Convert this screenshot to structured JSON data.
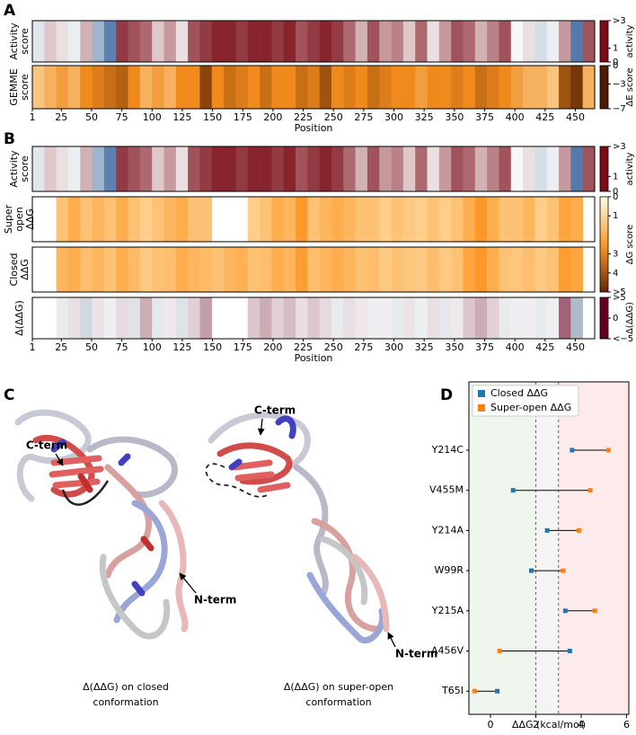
{
  "panel_c": {
    "label": "C",
    "captions": [
      [
        "Δ(ΔΔG) on closed",
        "conformation"
      ],
      [
        "Δ(ΔΔG) on super-open",
        "conformation"
      ]
    ],
    "terms": [
      "C-term",
      "N-term",
      "C-term",
      "N-term"
    ]
  },
  "chart_data": [
    {
      "type": "heatmap",
      "label": "A",
      "xlim": [
        1,
        466
      ],
      "xticks": [
        1,
        25,
        50,
        75,
        100,
        125,
        150,
        175,
        200,
        225,
        250,
        275,
        300,
        325,
        350,
        375,
        400,
        425,
        450
      ],
      "xlabel": "Position",
      "rows": [
        {
          "label": [
            "Activity",
            "score"
          ],
          "values": [
            1.2,
            0.8,
            0.9,
            1.1,
            0.7,
            1.8,
            2.4,
            0.2,
            0.3,
            0.4,
            0.8,
            0.6,
            0.9,
            0.3,
            0.2,
            0.1,
            0.1,
            0.2,
            0.1,
            0.1,
            0.2,
            0.1,
            0.3,
            0.2,
            0.1,
            0.2,
            0.4,
            0.7,
            0.3,
            0.6,
            0.5,
            0.8,
            0.4,
            0.9,
            0.6,
            0.3,
            0.4,
            0.7,
            0.5,
            0.3,
            1.0,
            0.9,
            1.3,
            1.1,
            0.6,
            2.5,
            0.3
          ]
        },
        {
          "label": [
            "GEMME",
            "score"
          ],
          "values": [
            -1.5,
            -2,
            -2.5,
            -2,
            -3,
            -3.5,
            -4,
            -4.5,
            -3,
            -2,
            -2.5,
            -2,
            -3,
            -3,
            -5.5,
            -3,
            -4,
            -3.5,
            -3,
            -4,
            -3,
            -3,
            -4,
            -3.5,
            -5,
            -3,
            -3.5,
            -3,
            -4,
            -3.5,
            -3,
            -3,
            -2.5,
            -3,
            -3,
            -3.5,
            -3,
            -4,
            -3.5,
            -3,
            -2.5,
            -2,
            -2,
            -1.5,
            -5,
            -6,
            -2
          ]
        }
      ],
      "colorbars": [
        {
          "rows": [
            0
          ],
          "label": "activity",
          "clim": [
            0,
            3
          ],
          "ticks": [
            {
              "value": 3,
              "label": ">3"
            },
            1,
            0
          ],
          "stops": [
            0,
            1,
            3
          ],
          "colors": [
            "#7a0c16",
            "#f7f7f7",
            "#1d4f91"
          ]
        },
        {
          "rows": [
            1
          ],
          "label": "ΔE score",
          "clim": [
            -7,
            0
          ],
          "ticks": [
            0,
            {
              "value": -3,
              "label": "−3"
            },
            {
              "value": -7,
              "label": "−7"
            }
          ],
          "stops": [
            -7,
            -3,
            0
          ],
          "colors": [
            "#4d1c02",
            "#f08a1d",
            "#ffffe0"
          ]
        }
      ]
    },
    {
      "type": "heatmap",
      "label": "B",
      "xlim": [
        1,
        466
      ],
      "xticks": [
        1,
        25,
        50,
        75,
        100,
        125,
        150,
        175,
        200,
        225,
        250,
        275,
        300,
        325,
        350,
        375,
        400,
        425,
        450
      ],
      "xlabel": "Position",
      "rows": [
        {
          "label": [
            "Activity",
            "score"
          ],
          "values": [
            1.2,
            0.8,
            0.9,
            1.1,
            0.7,
            1.8,
            2.4,
            0.2,
            0.3,
            0.4,
            0.8,
            0.6,
            0.9,
            0.3,
            0.2,
            0.1,
            0.1,
            0.2,
            0.1,
            0.1,
            0.2,
            0.1,
            0.3,
            0.2,
            0.1,
            0.2,
            0.4,
            0.7,
            0.3,
            0.6,
            0.5,
            0.8,
            0.4,
            0.9,
            0.6,
            0.3,
            0.4,
            0.7,
            0.5,
            0.3,
            1.0,
            0.9,
            1.3,
            1.1,
            0.6,
            2.5,
            0.3
          ]
        },
        {
          "label": [
            "Super",
            "open",
            "ΔΔG"
          ],
          "values": [
            null,
            null,
            1.5,
            2,
            1.5,
            1.8,
            1.5,
            2,
            1.5,
            1.2,
            1.5,
            1.8,
            2,
            1.5,
            1.5,
            null,
            null,
            null,
            1.2,
            1.5,
            2,
            1.8,
            2.5,
            1.5,
            1.8,
            2,
            1.8,
            1.5,
            1.5,
            1.2,
            1.5,
            1.3,
            1.2,
            1.5,
            1.2,
            1.5,
            2,
            2.5,
            2,
            1.5,
            1.5,
            1.8,
            1.2,
            1.5,
            2.2,
            2,
            null
          ]
        },
        {
          "label": [
            "Closed",
            "ΔΔG"
          ],
          "values": [
            null,
            null,
            1.8,
            2,
            1.6,
            1.8,
            1.5,
            2,
            1.7,
            1.3,
            1.5,
            1.6,
            2,
            1.8,
            1.7,
            1.5,
            1.8,
            1.9,
            1.5,
            1.6,
            2,
            1.8,
            2.4,
            1.6,
            1.8,
            2,
            1.8,
            1.5,
            1.6,
            1.3,
            1.5,
            1.4,
            1.3,
            1.6,
            1.3,
            1.5,
            2.2,
            2.5,
            2,
            1.5,
            1.4,
            1.6,
            1.3,
            1.5,
            2.4,
            2.2,
            null
          ]
        },
        {
          "label": [
            "Δ(ΔΔG)"
          ],
          "values": [
            null,
            null,
            0.3,
            -0.5,
            0.8,
            -0.4,
            0.2,
            -0.6,
            0.5,
            -1.5,
            0.4,
            -0.3,
            0.5,
            -0.8,
            -1.8,
            null,
            null,
            null,
            -1,
            -1.5,
            -0.8,
            -1.2,
            -0.5,
            -1,
            -0.6,
            0.3,
            -0.5,
            -0.3,
            0.2,
            -0.2,
            0.3,
            -0.4,
            0.2,
            -0.5,
            0.4,
            -0.3,
            -1,
            -1.5,
            -0.8,
            0.3,
            0.2,
            -0.2,
            0.3,
            0.2,
            -3,
            1.5,
            null
          ]
        }
      ],
      "colorbars": [
        {
          "rows": [
            0
          ],
          "label": "activity",
          "clim": [
            0,
            3
          ],
          "ticks": [
            {
              "value": 3,
              "label": ">3"
            },
            1,
            0
          ],
          "stops": [
            0,
            1,
            3
          ],
          "colors": [
            "#7a0c16",
            "#f7f7f7",
            "#1d4f91"
          ]
        },
        {
          "rows": [
            1,
            2
          ],
          "label": "ΔG score",
          "clim": [
            0,
            5
          ],
          "reverse": true,
          "ticks": [
            0,
            1,
            3,
            4,
            {
              "value": 5,
              "label": ">5"
            }
          ],
          "stops": [
            0,
            2.5,
            5
          ],
          "colors": [
            "#ffffe5",
            "#fe9929",
            "#662506"
          ]
        },
        {
          "rows": [
            3
          ],
          "label": "Δ(ΔΔG)",
          "clim": [
            -5,
            5
          ],
          "ticks": [
            {
              "value": 5,
              "label": ">5"
            },
            0,
            {
              "value": -5,
              "label": "<−5"
            }
          ],
          "stops": [
            -5,
            0,
            5
          ],
          "colors": [
            "#67001f",
            "#f7f7f7",
            "#053061"
          ]
        }
      ]
    },
    {
      "type": "dumbbell",
      "label": "D",
      "xlabel": "ΔΔG (kcal/mol)",
      "xlim": [
        -0.95,
        6.1
      ],
      "xticks": [
        0,
        2,
        4,
        6
      ],
      "categories": [
        "Y214C",
        "V455M",
        "Y214A",
        "W99R",
        "Y215A",
        "A456V",
        "T65I"
      ],
      "series": [
        {
          "name": "Closed ΔΔG",
          "color": "#1f77b4",
          "values": [
            3.6,
            1.0,
            2.5,
            1.8,
            3.3,
            3.5,
            0.3
          ]
        },
        {
          "name": "Super-open ΔΔG",
          "color": "#ff7f0e",
          "values": [
            5.2,
            4.4,
            3.9,
            3.2,
            4.6,
            0.4,
            -0.7
          ]
        }
      ],
      "bands": [
        {
          "from": -0.95,
          "to": 2,
          "color": "#eef6ee"
        },
        {
          "from": 2,
          "to": 3,
          "color": "#f4f4f4"
        },
        {
          "from": 3,
          "to": 6.1,
          "color": "#fdeaea"
        }
      ],
      "vlines": [
        2,
        3
      ],
      "legend": "upper left"
    }
  ]
}
